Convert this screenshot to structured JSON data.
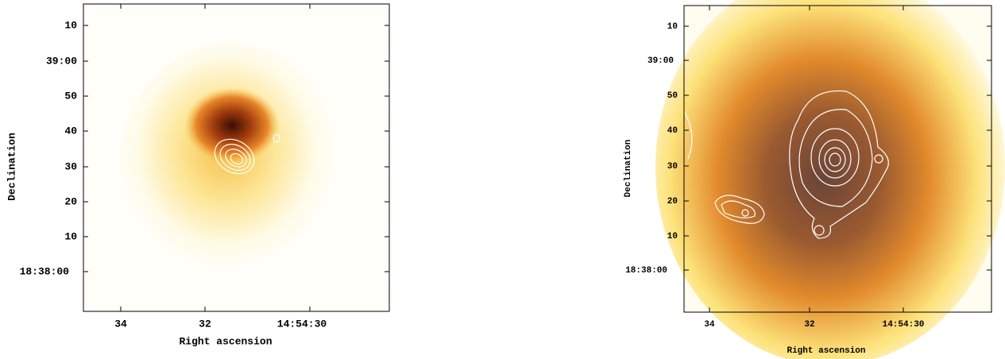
{
  "panels": [
    {
      "x_label": "Right ascension",
      "y_label": "Declination",
      "x_ticks": [
        "34",
        "32",
        "14:54:30"
      ],
      "y_ticks": [
        "10",
        "39:00",
        "50",
        "40",
        "30",
        "20",
        "10",
        "18:38:00"
      ]
    },
    {
      "x_label": "Right ascension",
      "y_label": "Declination",
      "x_ticks": [
        "34",
        "32",
        "14:54:30"
      ],
      "y_ticks": [
        "10",
        "39:00",
        "50",
        "40",
        "30",
        "20",
        "10",
        "18:38:00"
      ]
    }
  ]
}
